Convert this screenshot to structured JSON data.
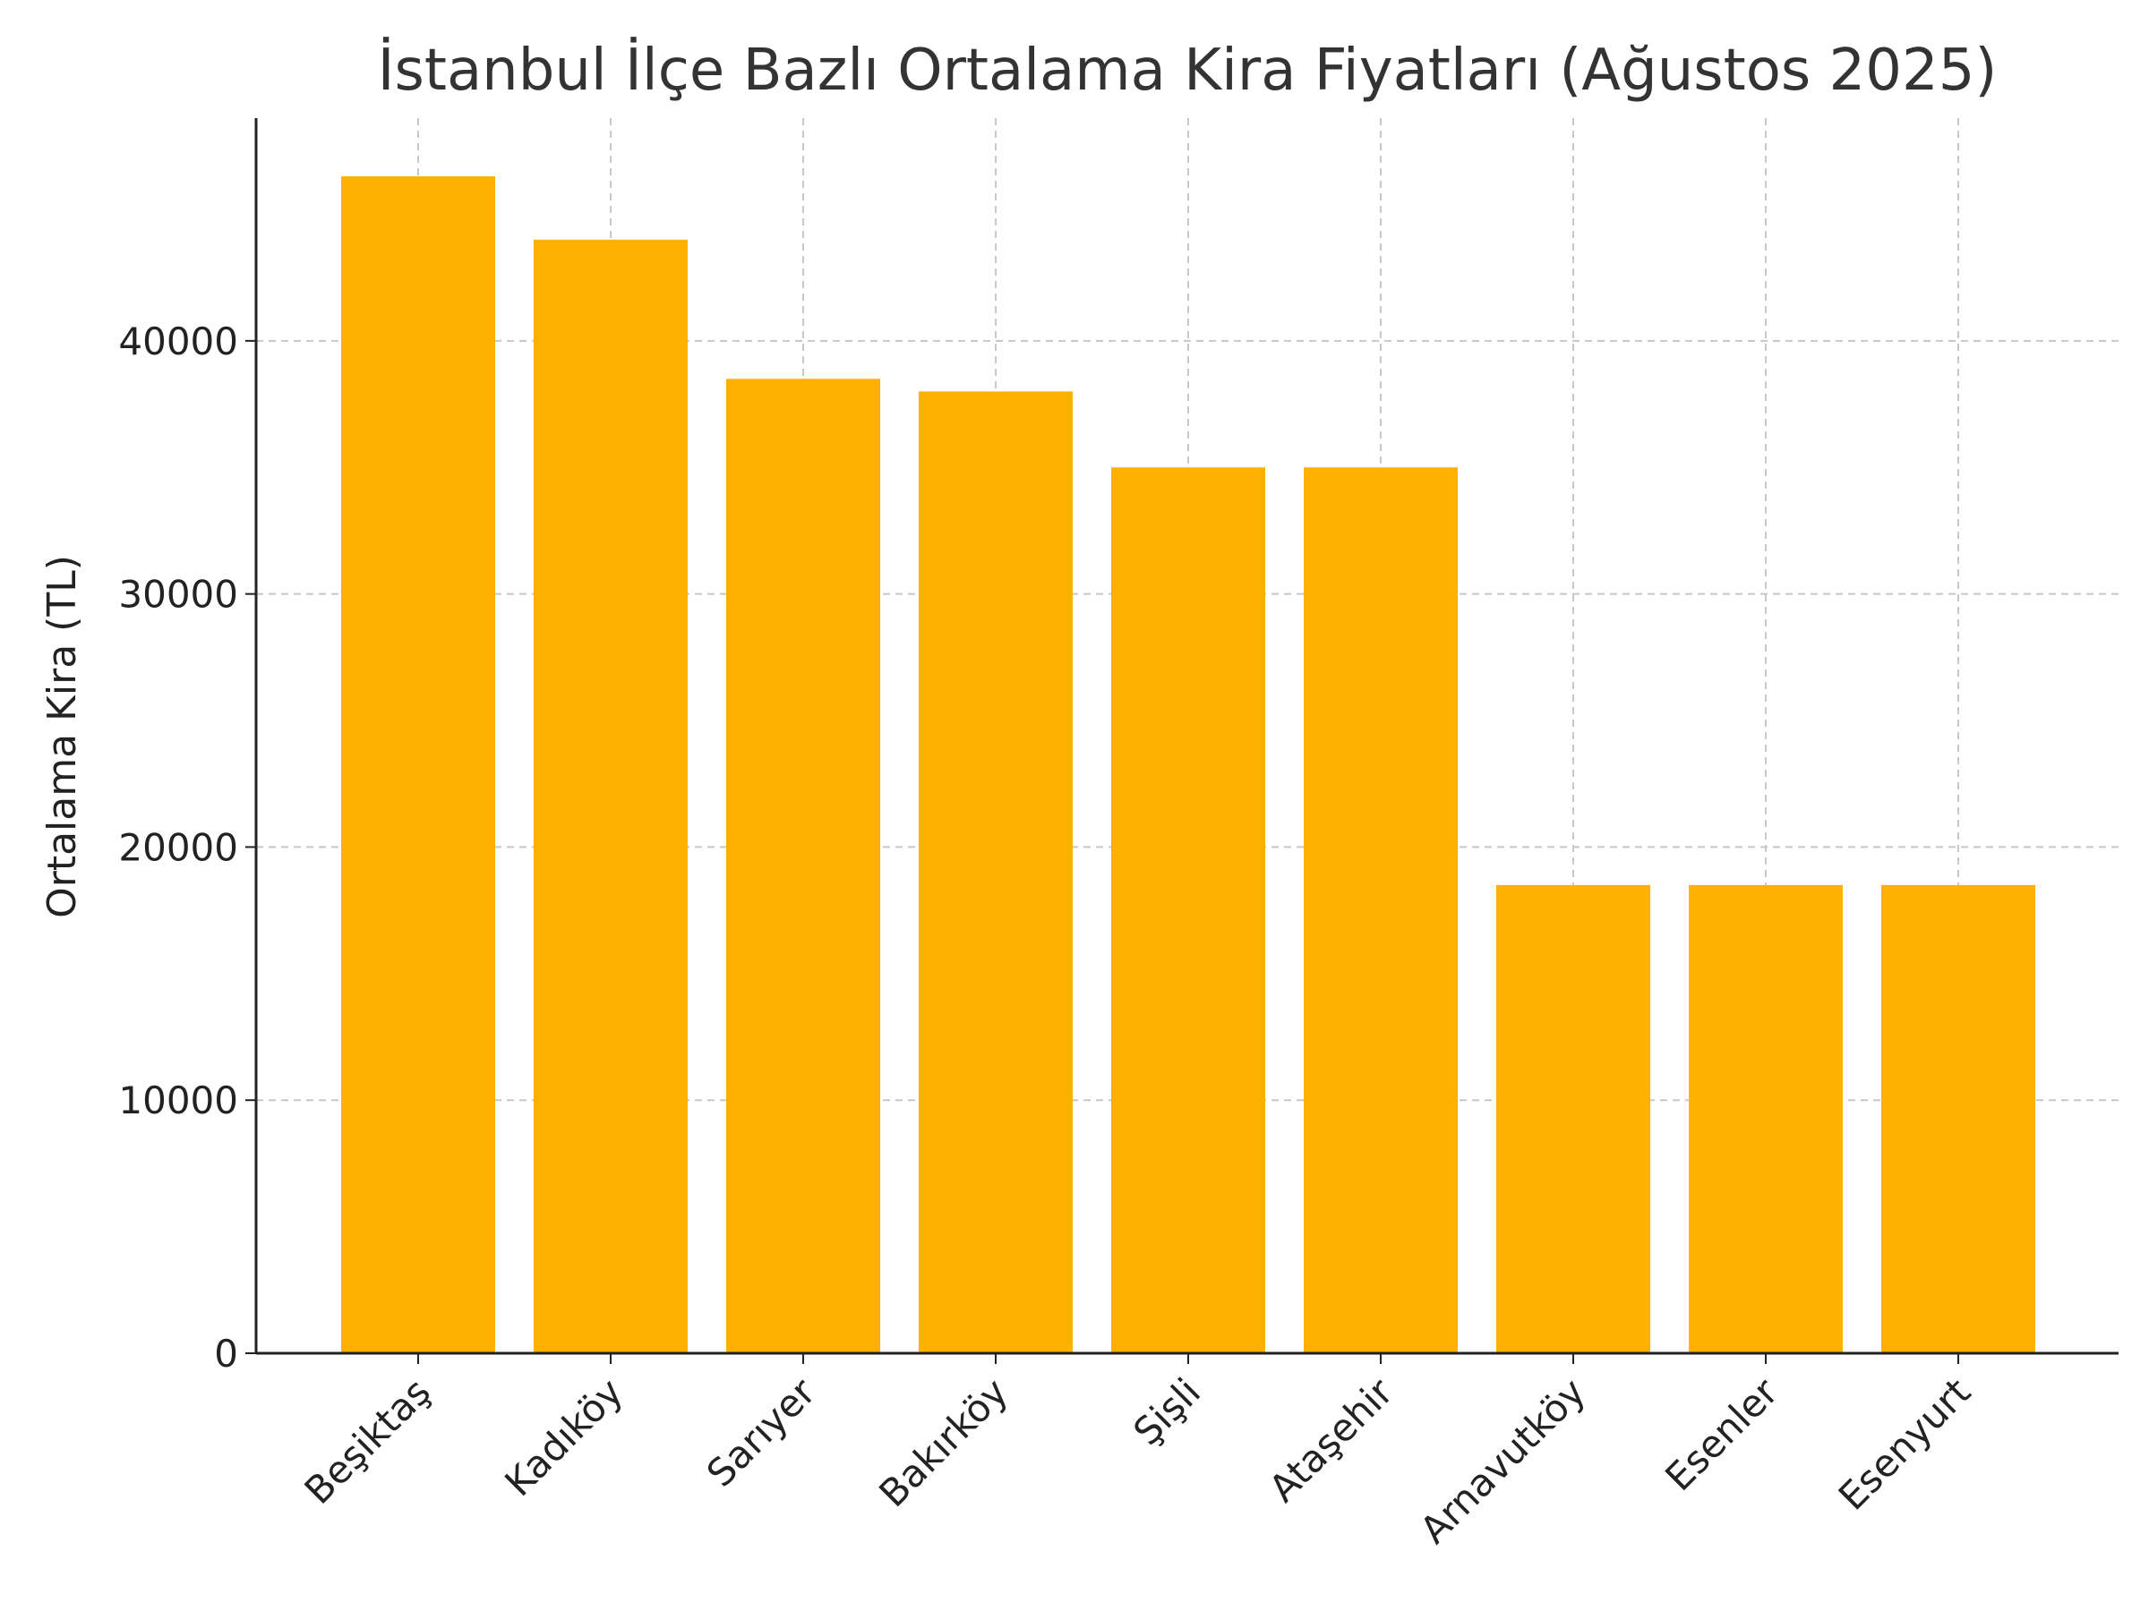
{
  "chart_data": {
    "type": "bar",
    "title": "İstanbul İlçe Bazlı Ortalama Kira Fiyatları (Ağustos 2025)",
    "xlabel": "",
    "ylabel": "Ortalama Kira (TL)",
    "categories": [
      "Beşiktaş",
      "Kadıköy",
      "Sarıyer",
      "Bakırköy",
      "Şişli",
      "Ataşehir",
      "Arnavutköy",
      "Esenler",
      "Esenyurt"
    ],
    "values": [
      46500,
      44000,
      38500,
      38000,
      35000,
      35000,
      18500,
      18500,
      18500
    ],
    "ylim": [
      0,
      48800
    ],
    "yticks": [
      0,
      10000,
      20000,
      30000,
      40000
    ],
    "grid": true,
    "bar_color": "#FFB000"
  }
}
